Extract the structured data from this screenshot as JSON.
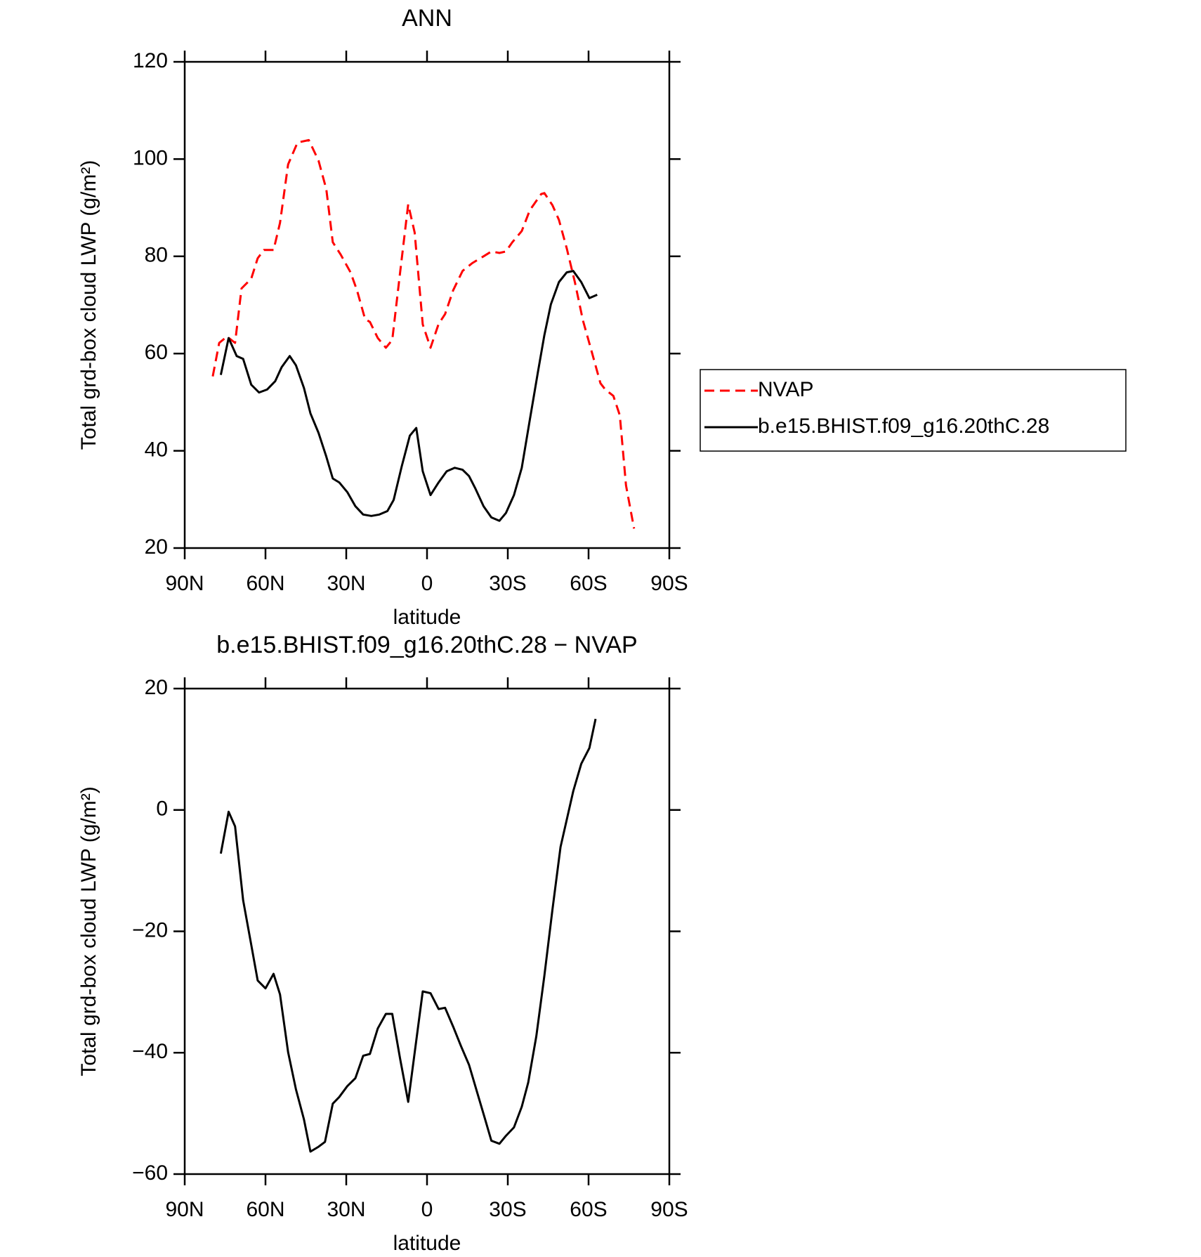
{
  "chart_data": [
    {
      "type": "line",
      "title": "ANN",
      "xlabel": "latitude",
      "ylabel": "Total grd-box cloud LWP (g/m²)",
      "xlim": [
        90,
        -90
      ],
      "xticks": [
        {
          "value": 90,
          "label": "90N"
        },
        {
          "value": 60,
          "label": "60N"
        },
        {
          "value": 30,
          "label": "30N"
        },
        0,
        {
          "value": -30,
          "label": "30S"
        },
        {
          "value": -60,
          "label": "60S"
        },
        {
          "value": -90,
          "label": "90S"
        }
      ],
      "ylim": [
        20,
        120
      ],
      "yticks": [
        20,
        40,
        60,
        80,
        100,
        120
      ],
      "legend": "right",
      "series": [
        {
          "name": "NVAP",
          "color": "#ff0000",
          "style": "dashed",
          "x": [
            79.6,
            77.2,
            74.3,
            71.3,
            68.9,
            65.3,
            62.9,
            60.6,
            57.0,
            54.6,
            51.6,
            48.1,
            43.9,
            40.3,
            37.4,
            35.0,
            32.0,
            28.4,
            26.0,
            23.0,
            21.2,
            18.3,
            15.3,
            12.9,
            10.0,
            7.0,
            4.6,
            1.6,
            -1.3,
            -4.3,
            -6.7,
            -9.7,
            -13.2,
            -16.8,
            -21.0,
            -23.9,
            -26.9,
            -29.3,
            -31.7,
            -35.2,
            -38.2,
            -42.4,
            -43.6,
            -46.6,
            -49.0,
            -51.9,
            -54.9,
            -57.9,
            -60.9,
            -64.4,
            -66.2,
            -69.2,
            -71.6,
            -73.9,
            -76.9
          ],
          "values": [
            55.3,
            62.2,
            63.5,
            62.2,
            73.4,
            75.4,
            79.6,
            81.3,
            81.3,
            86.9,
            98.9,
            103.4,
            103.9,
            99.7,
            93.8,
            82.9,
            80.3,
            76.7,
            73.0,
            67.1,
            66.5,
            63.2,
            61.2,
            62.8,
            76.7,
            90.7,
            84.9,
            66.0,
            61.2,
            66.1,
            68.1,
            73.0,
            77.0,
            78.6,
            80.0,
            81.0,
            80.7,
            81.0,
            82.9,
            85.2,
            89.5,
            92.8,
            93.0,
            90.5,
            87.5,
            81.6,
            74.7,
            66.8,
            60.9,
            53.9,
            52.6,
            51.3,
            47.3,
            32.9,
            24.0
          ]
        },
        {
          "name": "b.e15.BHIST.f09_g16.20thC.28",
          "color": "#000000",
          "style": "solid",
          "x": [
            76.6,
            73.7,
            70.7,
            68.3,
            65.3,
            62.4,
            59.4,
            56.4,
            54.0,
            51.0,
            48.7,
            45.7,
            43.3,
            40.3,
            37.4,
            35.0,
            32.6,
            29.6,
            26.6,
            23.7,
            20.7,
            17.7,
            14.7,
            12.4,
            9.4,
            6.4,
            4.0,
            1.6,
            -1.3,
            -4.3,
            -7.3,
            -10.3,
            -13.2,
            -15.6,
            -18.0,
            -21.0,
            -23.9,
            -26.9,
            -29.3,
            -32.3,
            -35.2,
            -38.2,
            -41.2,
            -43.6,
            -46.0,
            -49.0,
            -51.9,
            -54.3,
            -57.3,
            -60.3,
            -63.2
          ],
          "values": [
            55.6,
            63.2,
            59.5,
            58.9,
            53.6,
            52.0,
            52.6,
            54.3,
            57.2,
            59.5,
            57.6,
            52.9,
            47.7,
            43.7,
            38.8,
            34.3,
            33.5,
            31.5,
            28.6,
            26.9,
            26.6,
            26.9,
            27.6,
            29.9,
            36.8,
            43.1,
            44.7,
            35.8,
            30.9,
            33.5,
            35.8,
            36.5,
            36.1,
            34.8,
            32.2,
            28.6,
            26.3,
            25.6,
            27.2,
            30.9,
            36.5,
            46.4,
            56.2,
            63.8,
            70.1,
            74.7,
            76.7,
            77.0,
            74.7,
            71.4,
            72.1
          ]
        }
      ]
    },
    {
      "type": "line",
      "title": "b.e15.BHIST.f09_g16.20thC.28 − NVAP",
      "xlabel": "latitude",
      "ylabel": "Total grd-box cloud LWP (g/m²)",
      "xlim": [
        90,
        -90
      ],
      "xticks": [
        {
          "value": 90,
          "label": "90N"
        },
        {
          "value": 60,
          "label": "60N"
        },
        {
          "value": 30,
          "label": "30N"
        },
        0,
        {
          "value": -30,
          "label": "30S"
        },
        {
          "value": -60,
          "label": "60S"
        },
        {
          "value": -90,
          "label": "90S"
        }
      ],
      "ylim": [
        -60,
        20
      ],
      "yticks": [
        {
          "value": -60,
          "label": "−60"
        },
        {
          "value": -40,
          "label": "−40"
        },
        {
          "value": -20,
          "label": "−20"
        },
        0,
        20
      ],
      "color": "#000000",
      "x": [
        76.6,
        73.7,
        71.3,
        68.3,
        65.3,
        62.9,
        60.0,
        57.0,
        54.6,
        51.6,
        48.7,
        45.7,
        43.3,
        40.3,
        37.9,
        35.0,
        32.6,
        29.6,
        26.6,
        23.7,
        21.2,
        18.3,
        15.3,
        12.9,
        10.0,
        7.0,
        1.6,
        -1.3,
        -4.3,
        -6.7,
        -9.7,
        -12.6,
        -15.6,
        -18.6,
        -21.6,
        -23.9,
        -26.9,
        -29.3,
        -32.3,
        -35.2,
        -37.6,
        -40.6,
        -43.6,
        -46.6,
        -49.6,
        -54.3,
        -57.3,
        -60.3,
        -62.6
      ],
      "values": [
        -7.2,
        -0.3,
        -2.7,
        -14.9,
        -22.2,
        -28.1,
        -29.4,
        -27.0,
        -30.4,
        -39.9,
        -46.0,
        -51.0,
        -56.3,
        -55.5,
        -54.7,
        -48.4,
        -47.3,
        -45.5,
        -44.2,
        -40.5,
        -40.2,
        -36.0,
        -33.6,
        -33.6,
        -41.0,
        -48.1,
        -29.9,
        -30.2,
        -32.8,
        -32.6,
        -35.7,
        -38.9,
        -42.0,
        -46.5,
        -51.0,
        -54.5,
        -55.0,
        -53.7,
        -52.3,
        -48.9,
        -44.9,
        -37.3,
        -27.3,
        -16.4,
        -6.1,
        3.1,
        7.6,
        10.2,
        15.0
      ]
    }
  ]
}
